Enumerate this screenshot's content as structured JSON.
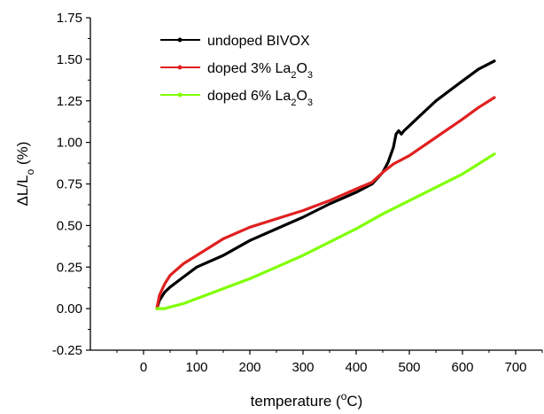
{
  "chart_data": {
    "type": "line",
    "xlabel": "temperature (°C)",
    "xlabel_parts": {
      "main": "temperature (",
      "sup": "o",
      "rest": "C)"
    },
    "ylabel": "ΔL/Lo (%)",
    "ylabel_parts": {
      "main": "ΔL/L",
      "sub": "o",
      "rest": " (%)"
    },
    "xlim": [
      -100,
      750
    ],
    "ylim": [
      -0.25,
      1.75
    ],
    "xticks": [
      "0",
      "100",
      "200",
      "300",
      "400",
      "500",
      "600",
      "700"
    ],
    "yticks": [
      "-0.25",
      "0.00",
      "0.25",
      "0.50",
      "0.75",
      "1.00",
      "1.25",
      "1.50",
      "1.75"
    ],
    "legend_position": "top-left",
    "series": [
      {
        "name": "undoped BIVOX",
        "color": "#000000",
        "x": [
          25,
          30,
          40,
          50,
          75,
          100,
          150,
          200,
          250,
          300,
          350,
          400,
          430,
          450,
          460,
          470,
          475,
          480,
          485,
          490,
          500,
          520,
          550,
          600,
          630,
          660
        ],
        "y": [
          0.0,
          0.05,
          0.1,
          0.13,
          0.19,
          0.25,
          0.32,
          0.41,
          0.48,
          0.55,
          0.63,
          0.7,
          0.75,
          0.82,
          0.88,
          0.97,
          1.05,
          1.07,
          1.05,
          1.07,
          1.1,
          1.16,
          1.25,
          1.37,
          1.44,
          1.49
        ]
      },
      {
        "name": "doped 3% La2O3",
        "name_parts": {
          "main": "doped 3% La",
          "sub1": "2",
          "mid": "O",
          "sub2": "3"
        },
        "color": "#e02020",
        "x": [
          25,
          30,
          40,
          50,
          75,
          100,
          150,
          200,
          250,
          300,
          350,
          400,
          430,
          450,
          470,
          500,
          550,
          600,
          630,
          660
        ],
        "y": [
          0.0,
          0.08,
          0.15,
          0.2,
          0.27,
          0.32,
          0.42,
          0.49,
          0.54,
          0.59,
          0.65,
          0.72,
          0.76,
          0.82,
          0.87,
          0.92,
          1.03,
          1.14,
          1.21,
          1.27
        ]
      },
      {
        "name": "doped 6% La2O3",
        "name_parts": {
          "main": "doped 6% La",
          "sub1": "2",
          "mid": "O",
          "sub2": "3"
        },
        "color": "#7fff00",
        "x": [
          25,
          40,
          50,
          75,
          100,
          150,
          200,
          250,
          300,
          350,
          400,
          450,
          500,
          550,
          600,
          630,
          660
        ],
        "y": [
          0.0,
          0.0,
          0.01,
          0.03,
          0.06,
          0.12,
          0.18,
          0.25,
          0.32,
          0.4,
          0.48,
          0.57,
          0.65,
          0.73,
          0.81,
          0.87,
          0.93
        ]
      }
    ]
  }
}
